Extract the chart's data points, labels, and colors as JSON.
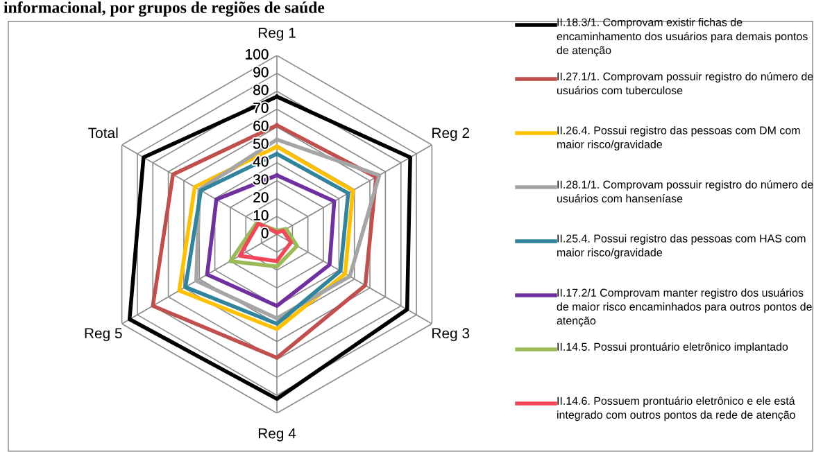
{
  "chart_data": {
    "type": "radar",
    "title": "informacional, por grupos de regiões de saúde",
    "categories": [
      "Reg 1",
      "Reg 2",
      "Reg 3",
      "Reg 4",
      "Reg 5",
      "Total"
    ],
    "ylim": [
      0,
      100
    ],
    "yticks": [
      0,
      10,
      20,
      30,
      40,
      50,
      60,
      70,
      80,
      90,
      100
    ],
    "grid": true,
    "legend": "right",
    "marker": "none",
    "series": [
      {
        "name": "II.18.3/1. Comprovam existir fichas de encaminhamento dos usuários para demais pontos de atenção",
        "color": "#000000",
        "values": [
          77,
          86,
          84,
          92,
          95,
          86
        ]
      },
      {
        "name": "II.27.1/1. Comprovam possuir registro do número de usuários com tuberculose",
        "color": "#c0504d",
        "values": [
          61,
          64,
          57,
          69,
          80,
          67
        ]
      },
      {
        "name": "II.26.4. Possui registro das pessoas com DM com maior risco/gravidade",
        "color": "#ffc000",
        "values": [
          49,
          49,
          44,
          53,
          63,
          53
        ]
      },
      {
        "name": "II.28.1/1. Comprovam possuir registro do número de usuários com hanseníase",
        "color": "#a5a5a5",
        "values": [
          53,
          66,
          47,
          47,
          52,
          50
        ]
      },
      {
        "name": "II.25.4. Possui registro das pessoas com HAS com maior risco/gravidade",
        "color": "#31849b",
        "values": [
          45,
          46,
          41,
          50,
          59,
          49
        ]
      },
      {
        "name": "II.17.2/1 Comprovam manter registro dos usuários de maior risco encaminhados para outros pontos de atenção",
        "color": "#7030a0",
        "values": [
          33,
          37,
          34,
          40,
          45,
          39
        ]
      },
      {
        "name": "II.14.5. Possui prontuário eletrônico implantado",
        "color": "#9bbb59",
        "values": [
          2,
          6,
          13,
          18,
          30,
          13
        ]
      },
      {
        "name": "II.14.6. Possuem prontuário eletrônico e ele está integrado com outros pontos da rede de atenção",
        "color": "#f04858",
        "values": [
          1,
          4,
          9,
          15,
          24,
          12
        ]
      }
    ]
  }
}
